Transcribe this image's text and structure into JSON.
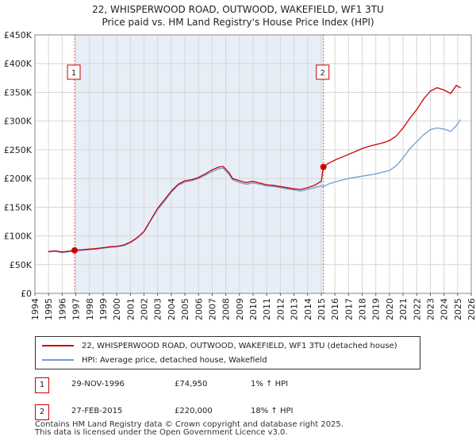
{
  "title": {
    "line1": "22, WHISPERWOOD ROAD, OUTWOOD, WAKEFIELD, WF1 3TU",
    "line2": "Price paid vs. HM Land Registry's House Price Index (HPI)"
  },
  "chart_data": {
    "type": "line",
    "title": "22, WHISPERWOOD ROAD, OUTWOOD, WAKEFIELD, WF1 3TU — Price paid vs. HM Land Registry's House Price Index (HPI)",
    "xlabel": "",
    "ylabel": "",
    "xlim": [
      1994,
      2026
    ],
    "ylim": [
      0,
      450000
    ],
    "x_ticks": [
      1994,
      1995,
      1996,
      1997,
      1998,
      1999,
      2000,
      2001,
      2002,
      2003,
      2004,
      2005,
      2006,
      2007,
      2008,
      2009,
      2010,
      2011,
      2012,
      2013,
      2014,
      2015,
      2016,
      2017,
      2018,
      2019,
      2020,
      2021,
      2022,
      2023,
      2024,
      2025,
      2026
    ],
    "x_tick_labels": [
      "1994",
      "1995",
      "1996",
      "1997",
      "1998",
      "1999",
      "2000",
      "2001",
      "2002",
      "2003",
      "2004",
      "2005",
      "2006",
      "2007",
      "2008",
      "2009",
      "2010",
      "2011",
      "2012",
      "2013",
      "2014",
      "2015",
      "2016",
      "2017",
      "2018",
      "2019",
      "2020",
      "2021",
      "2022",
      "2023",
      "2024",
      "2025",
      "2026"
    ],
    "y_ticks": [
      0,
      50000,
      100000,
      150000,
      200000,
      250000,
      300000,
      350000,
      400000,
      450000
    ],
    "y_tick_labels": [
      "£0",
      "£50K",
      "£100K",
      "£150K",
      "£200K",
      "£250K",
      "£300K",
      "£350K",
      "£400K",
      "£450K"
    ],
    "grid": true,
    "series": [
      {
        "name": "22, WHISPERWOOD ROAD, OUTWOOD, WAKEFIELD, WF1 3TU (detached house)",
        "color": "#cc0000",
        "x": [
          1995.0,
          1995.5,
          1996.0,
          1996.5,
          1996.91,
          1997.5,
          1998.0,
          1998.5,
          1999.0,
          1999.5,
          2000.0,
          2000.5,
          2001.0,
          2001.5,
          2002.0,
          2002.5,
          2003.0,
          2003.5,
          2004.0,
          2004.5,
          2005.0,
          2005.5,
          2006.0,
          2006.5,
          2007.0,
          2007.5,
          2007.8,
          2008.2,
          2008.5,
          2009.0,
          2009.5,
          2010.0,
          2010.5,
          2011.0,
          2011.5,
          2012.0,
          2012.5,
          2013.0,
          2013.5,
          2014.0,
          2014.5,
          2015.0,
          2015.16,
          2015.5,
          2016.0,
          2016.5,
          2017.0,
          2017.5,
          2018.0,
          2018.5,
          2019.0,
          2019.5,
          2020.0,
          2020.5,
          2021.0,
          2021.5,
          2022.0,
          2022.5,
          2023.0,
          2023.5,
          2024.0,
          2024.5,
          2024.9,
          2025.2
        ],
        "values": [
          73000,
          74000,
          72000,
          73500,
          74950,
          76000,
          77000,
          78000,
          79500,
          81000,
          82000,
          84000,
          89000,
          97000,
          108000,
          128000,
          148000,
          163000,
          178000,
          190000,
          196000,
          198000,
          202000,
          208000,
          215000,
          220000,
          221000,
          211000,
          200000,
          196000,
          193000,
          195000,
          192000,
          189000,
          188000,
          186000,
          184000,
          182000,
          181000,
          184000,
          188000,
          195000,
          220000,
          226000,
          232000,
          237000,
          242000,
          247000,
          252000,
          256000,
          259000,
          262000,
          266000,
          274000,
          288000,
          305000,
          320000,
          338000,
          352000,
          358000,
          354000,
          348000,
          362000,
          358000
        ]
      },
      {
        "name": "HPI: Average price, detached house, Wakefield",
        "color": "#6f9ed6",
        "x": [
          1995.0,
          1995.5,
          1996.0,
          1996.5,
          1996.91,
          1997.5,
          1998.0,
          1998.5,
          1999.0,
          1999.5,
          2000.0,
          2000.5,
          2001.0,
          2001.5,
          2002.0,
          2002.5,
          2003.0,
          2003.5,
          2004.0,
          2004.5,
          2005.0,
          2005.5,
          2006.0,
          2006.5,
          2007.0,
          2007.5,
          2007.8,
          2008.2,
          2008.5,
          2009.0,
          2009.5,
          2010.0,
          2010.5,
          2011.0,
          2011.5,
          2012.0,
          2012.5,
          2013.0,
          2013.5,
          2014.0,
          2014.5,
          2015.0,
          2015.16,
          2015.5,
          2016.0,
          2016.5,
          2017.0,
          2017.5,
          2018.0,
          2018.5,
          2019.0,
          2019.5,
          2020.0,
          2020.5,
          2021.0,
          2021.5,
          2022.0,
          2022.5,
          2023.0,
          2023.5,
          2024.0,
          2024.5,
          2024.9,
          2025.2
        ],
        "values": [
          72000,
          73000,
          71000,
          72500,
          74000,
          75000,
          76000,
          77000,
          78500,
          80000,
          81000,
          83000,
          88000,
          96000,
          107000,
          127000,
          146000,
          160000,
          176000,
          188000,
          194000,
          196000,
          200000,
          206000,
          212000,
          217000,
          218000,
          208000,
          198000,
          193000,
          190000,
          192000,
          190000,
          187000,
          186000,
          184000,
          182000,
          180000,
          178000,
          181000,
          184000,
          187000,
          186000,
          190000,
          194000,
          197000,
          200000,
          202000,
          204000,
          206000,
          208000,
          211000,
          214000,
          222000,
          236000,
          252000,
          264000,
          276000,
          285000,
          288000,
          286000,
          282000,
          292000,
          302000
        ]
      }
    ],
    "annotations": [
      {
        "label": "1",
        "x": 1996.91,
        "y": 74950
      },
      {
        "label": "2",
        "x": 2015.16,
        "y": 220000
      }
    ]
  },
  "legend": {
    "items": [
      {
        "label": "22, WHISPERWOOD ROAD, OUTWOOD, WAKEFIELD, WF1 3TU (detached house)",
        "color": "#cc0000"
      },
      {
        "label": "HPI: Average price, detached house, Wakefield",
        "color": "#6f9ed6"
      }
    ]
  },
  "sales": [
    {
      "num": "1",
      "date": "29-NOV-1996",
      "price": "£74,950",
      "hpi": "1% ↑ HPI"
    },
    {
      "num": "2",
      "date": "27-FEB-2015",
      "price": "£220,000",
      "hpi": "18% ↑ HPI"
    }
  ],
  "footer": {
    "line1": "Contains HM Land Registry data © Crown copyright and database right 2025.",
    "line2": "This data is licensed under the Open Government Licence v3.0."
  }
}
